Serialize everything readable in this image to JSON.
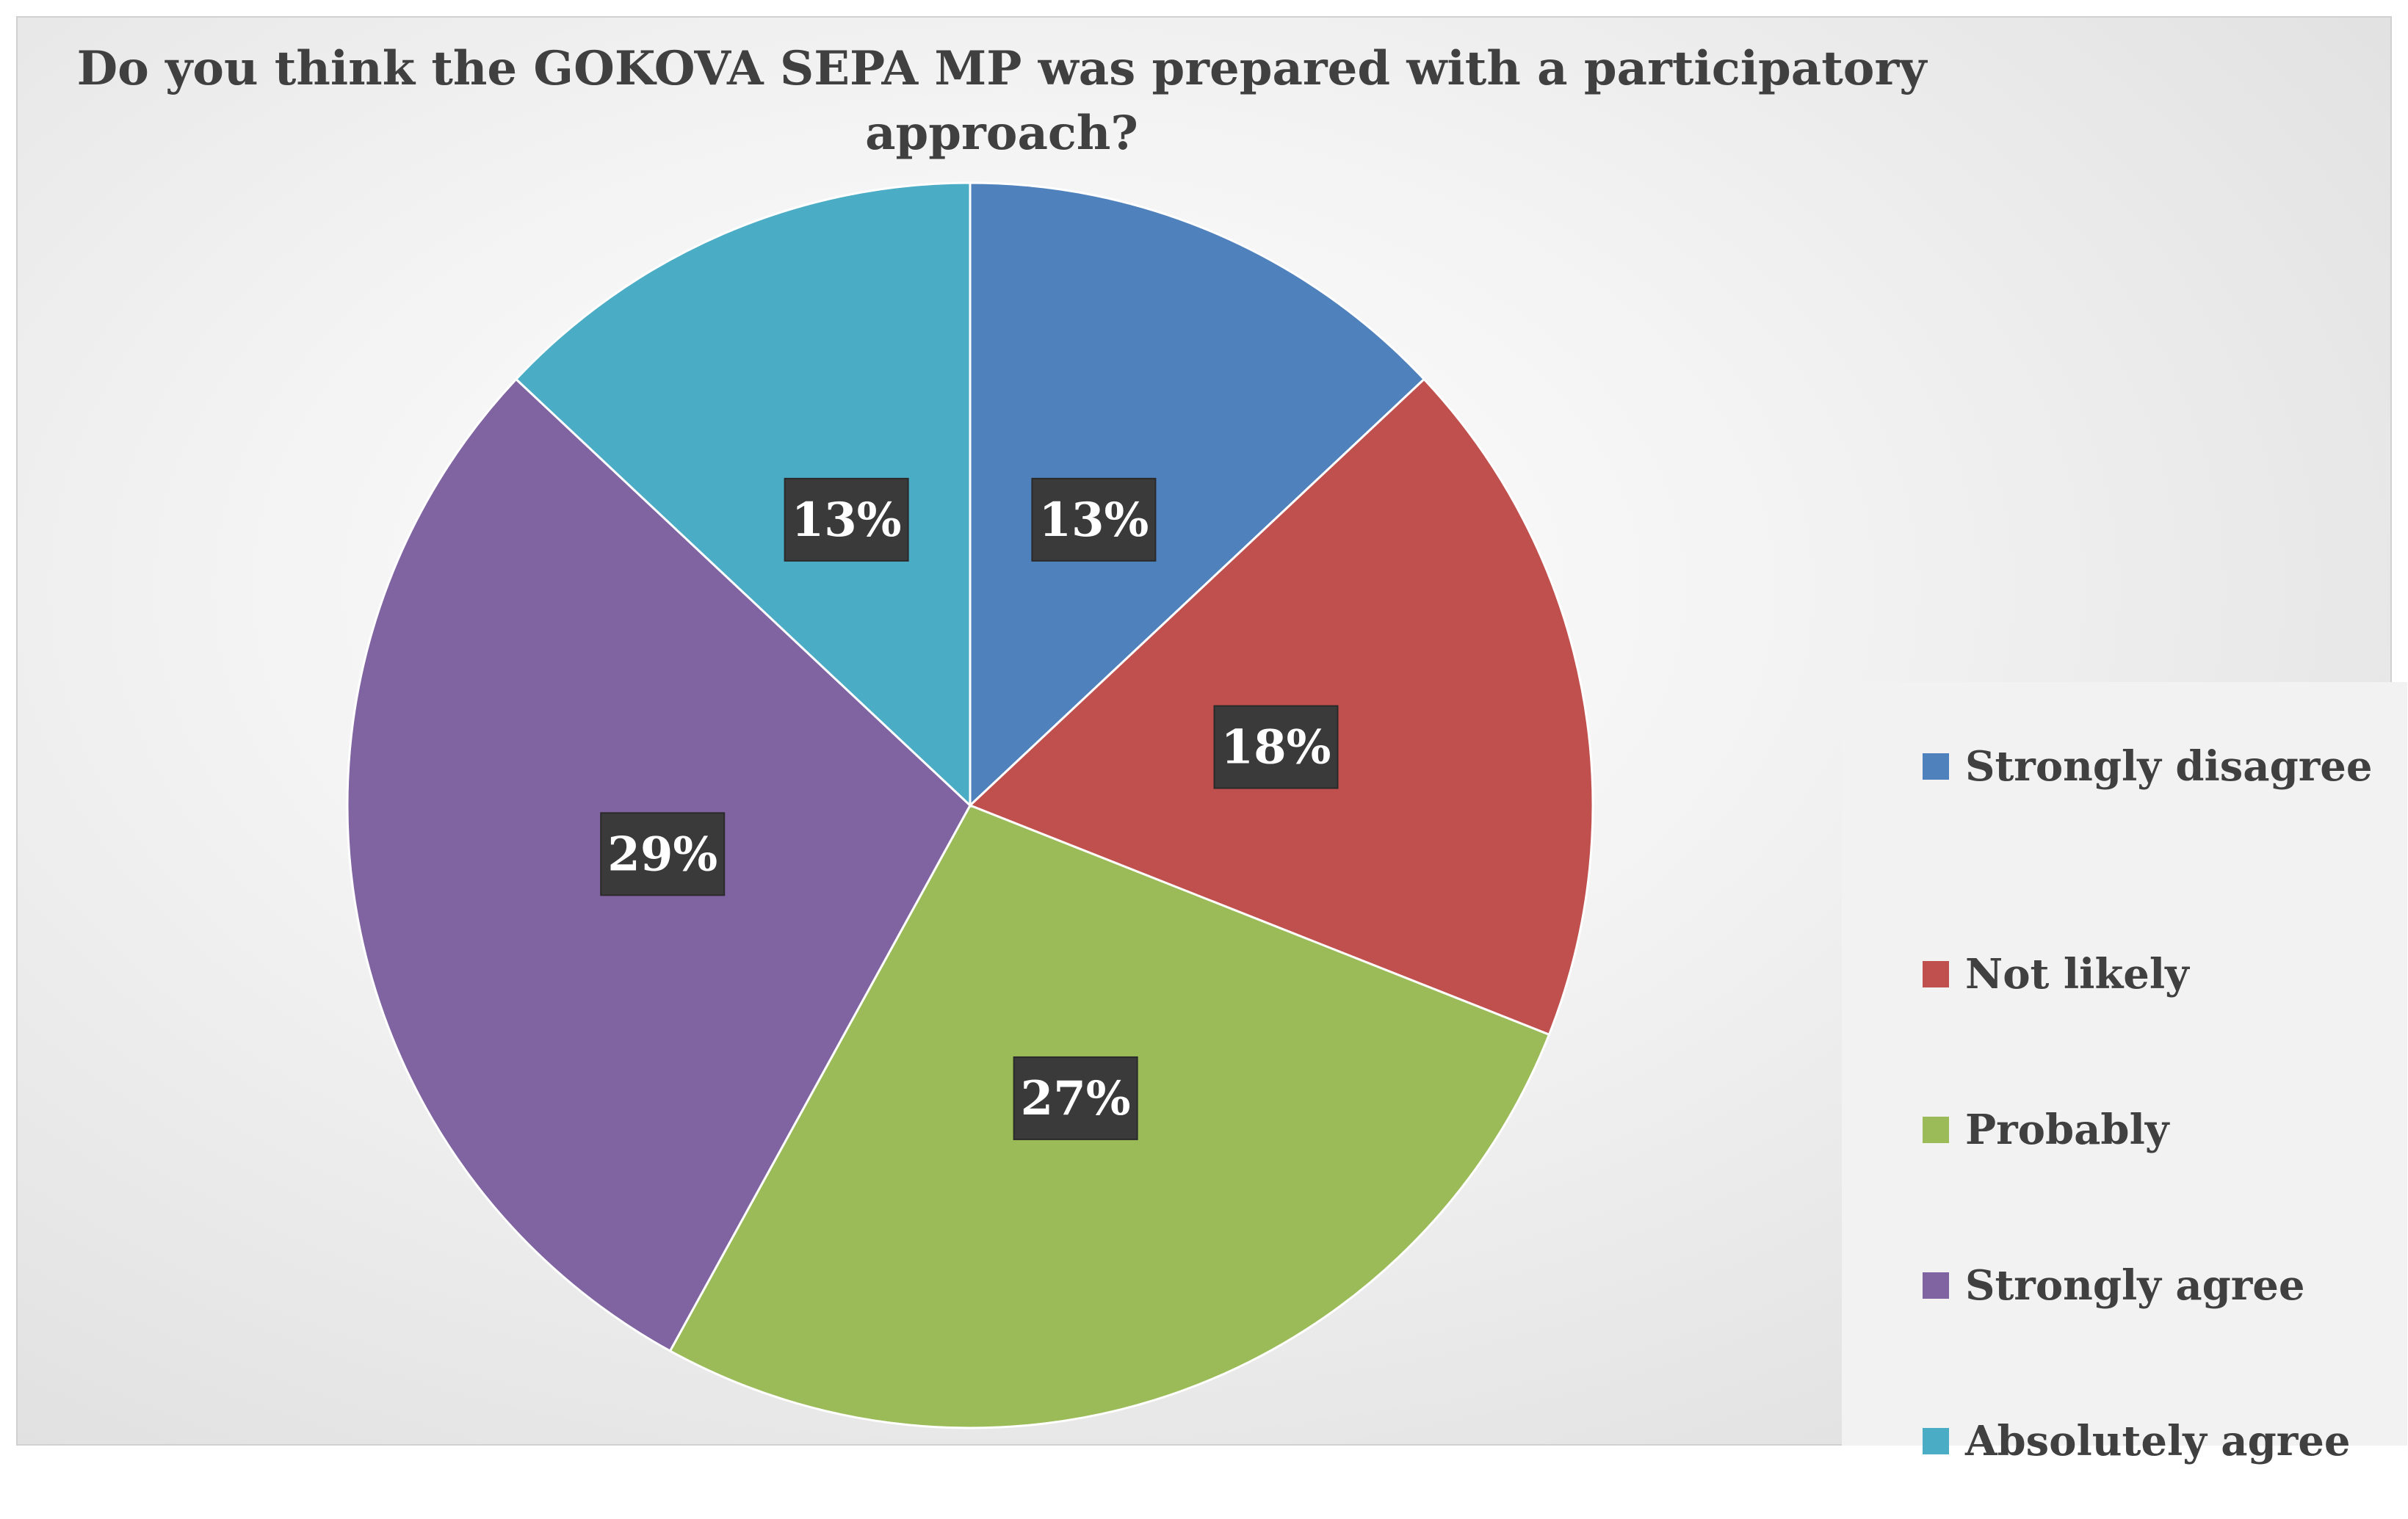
{
  "chart_data": {
    "type": "pie",
    "title": [
      "Do you think the GOKOVA SEPA MP was prepared with a participatory",
      "approach?"
    ],
    "legend_position": "right",
    "categories": [
      "Strongly disagree",
      "Not likely",
      "Probably",
      "Strongly agree",
      "Absolutely agree"
    ],
    "values": [
      13,
      18,
      27,
      29,
      13
    ],
    "labels": [
      "13%",
      "18%",
      "27%",
      "29%",
      "13%"
    ],
    "colors": [
      "#4F81BD",
      "#C0504D",
      "#9BBB59",
      "#8064A2",
      "#4BACC6"
    ]
  }
}
